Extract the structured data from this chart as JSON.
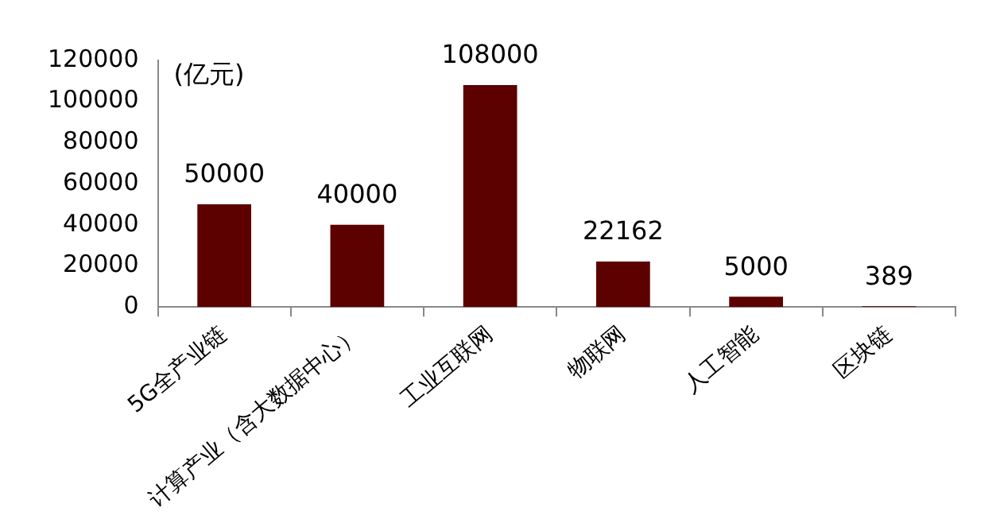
{
  "chart_data": {
    "type": "bar",
    "ylabel": "(亿元)",
    "categories": [
      "5G全产业链",
      "计算产业（含大数据中心）",
      "工业互联网",
      "物联网",
      "人工智能",
      "区块链"
    ],
    "values": [
      50000,
      40000,
      108000,
      22162,
      5000,
      389
    ],
    "color": "#5c0000",
    "ylim": [
      0,
      120000
    ],
    "yticks": [
      0,
      20000,
      40000,
      60000,
      80000,
      100000,
      120000
    ],
    "grid": false,
    "legend": false,
    "data_labels": true
  }
}
